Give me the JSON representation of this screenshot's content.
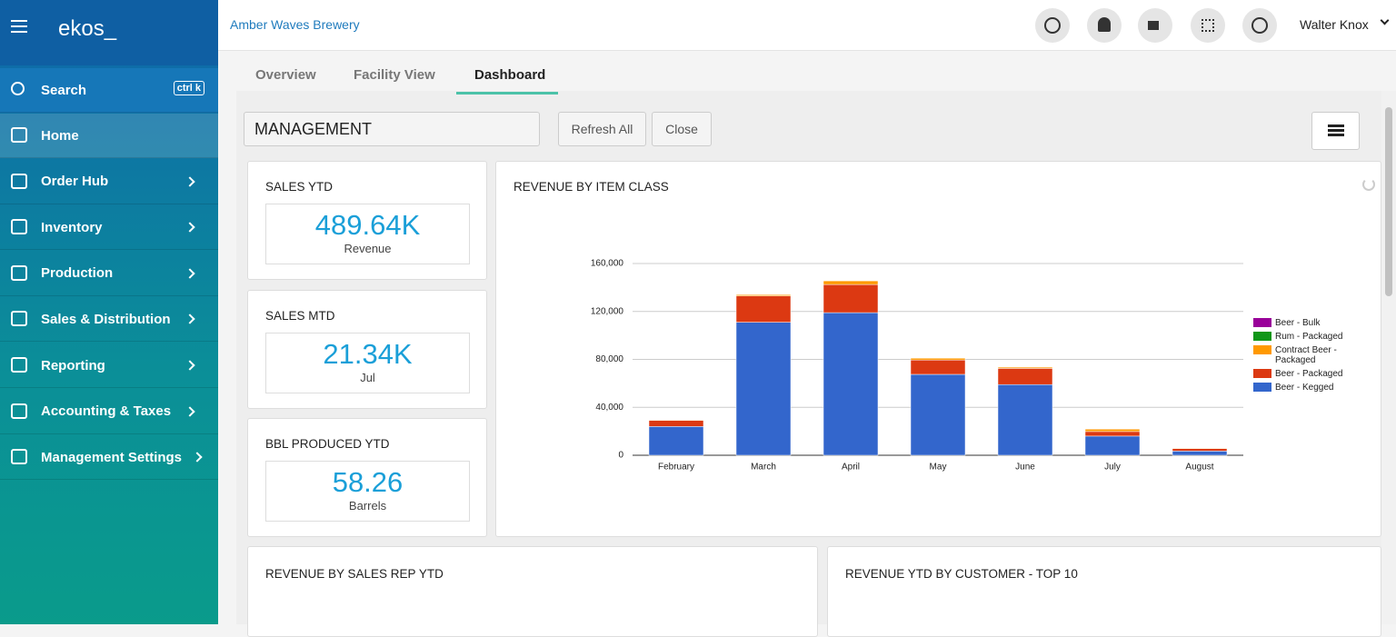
{
  "brand": "ekos_",
  "header": {
    "company": "Amber Waves Brewery",
    "user": "Walter Knox"
  },
  "sidebar": {
    "search": "Search",
    "shortcut": "ctrl k",
    "items": [
      "Home",
      "Order Hub",
      "Inventory",
      "Production",
      "Sales & Distribution",
      "Reporting",
      "Accounting & Taxes",
      "Management Settings"
    ]
  },
  "tabs": [
    "Overview",
    "Facility View",
    "Dashboard"
  ],
  "dashboard": {
    "name": "MANAGEMENT",
    "buttons": [
      "Refresh All",
      "Close"
    ]
  },
  "kpis": [
    {
      "title": "SALES YTD",
      "value": "489.64K",
      "label": "Revenue"
    },
    {
      "title": "SALES MTD",
      "value": "21.34K",
      "label": "Jul"
    },
    {
      "title": "BBL PRODUCED YTD",
      "value": "58.26",
      "label": "Barrels"
    }
  ],
  "panels": [
    "REVENUE BY SALES REP YTD",
    "REVENUE YTD BY CUSTOMER - TOP 10"
  ],
  "chart_data": {
    "type": "stacked_bar",
    "title": "REVENUE BY ITEM CLASS",
    "categories": [
      "February",
      "March",
      "April",
      "May",
      "June",
      "July",
      "August"
    ],
    "series": [
      {
        "name": "Beer - Bulk",
        "color": "#990099",
        "values": [
          0,
          0,
          0,
          0,
          0,
          0,
          0
        ]
      },
      {
        "name": "Rum - Packaged",
        "color": "#109618",
        "values": [
          0,
          0,
          0,
          0,
          0,
          0,
          0
        ]
      },
      {
        "name": "Contract Beer - Packaged",
        "color": "#ff9900",
        "values": [
          500,
          1000,
          3000,
          1500,
          1000,
          2000,
          500
        ]
      },
      {
        "name": "Beer - Packaged",
        "color": "#dc3912",
        "values": [
          5000,
          22000,
          23500,
          12000,
          13500,
          3800,
          2000
        ]
      },
      {
        "name": "Beer - Kegged",
        "color": "#3366cc",
        "values": [
          24000,
          111000,
          119000,
          67500,
          59000,
          16000,
          3500
        ]
      }
    ],
    "ylim": [
      0,
      160000
    ],
    "yticks": [
      0,
      {
        "value": 40000,
        "label": "40,000"
      },
      {
        "value": 80000,
        "label": "80,000"
      },
      {
        "value": 120000,
        "label": "120,000"
      },
      {
        "value": 160000,
        "label": "160,000"
      }
    ],
    "grid": true,
    "legend": "right"
  }
}
